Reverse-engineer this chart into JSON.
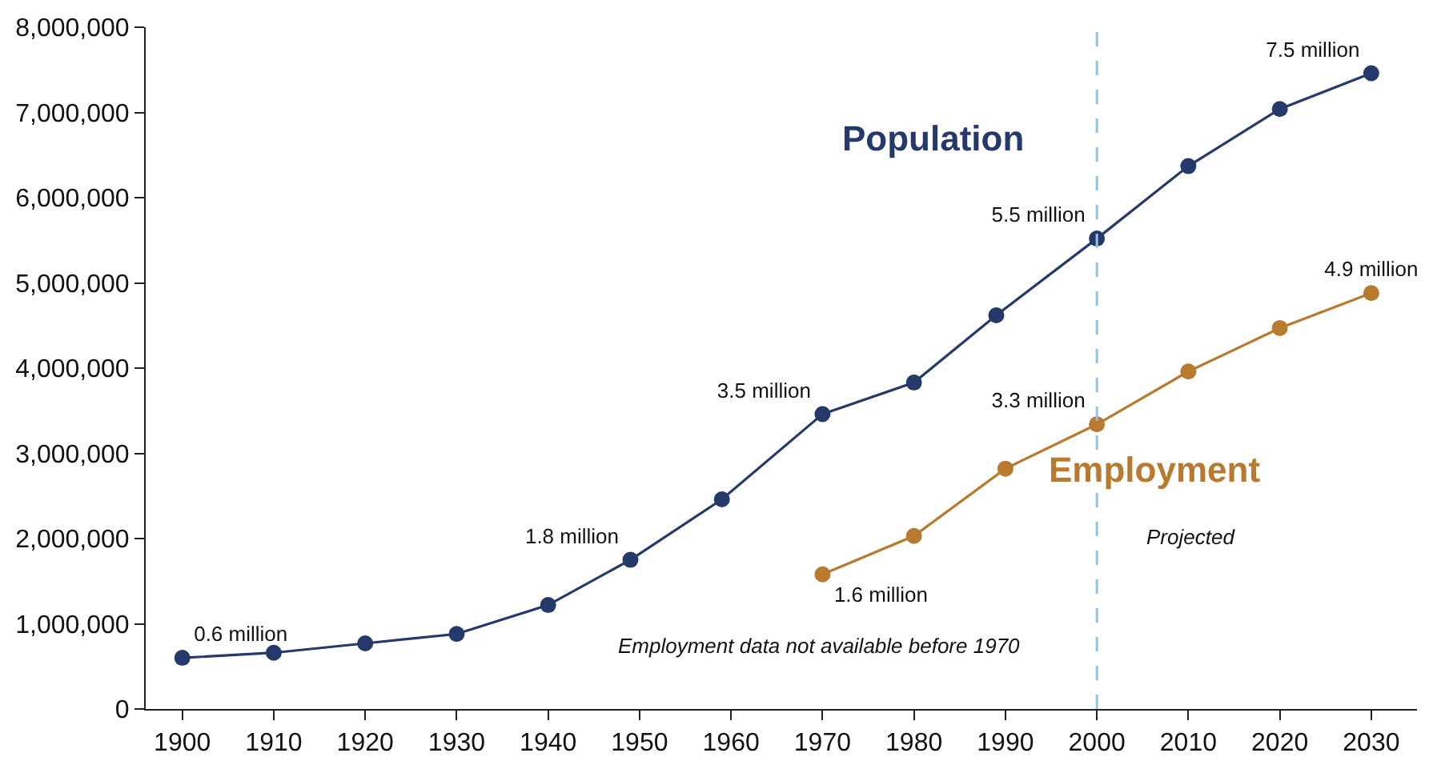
{
  "chart_data": {
    "type": "line",
    "series": [
      {
        "name": "Population",
        "color": "#253a6b",
        "x": [
          1900,
          1910,
          1920,
          1930,
          1940,
          1949,
          1959,
          1970,
          1980,
          1989,
          2000,
          2010,
          2020,
          2030
        ],
        "values": [
          600000,
          660000,
          770000,
          880000,
          1220000,
          1750000,
          2460000,
          3460000,
          3830000,
          4620000,
          5520000,
          6370000,
          7040000,
          7460000
        ],
        "value_labels": [
          "0.6 million",
          null,
          null,
          null,
          null,
          "1.8 million",
          null,
          "3.5 million",
          null,
          null,
          "5.5 million",
          null,
          null,
          "7.5 million"
        ]
      },
      {
        "name": "Employment",
        "color": "#b87a2f",
        "x": [
          1970,
          1980,
          1990,
          2000,
          2010,
          2020,
          2030
        ],
        "values": [
          1580000,
          2030000,
          2820000,
          3340000,
          3960000,
          4470000,
          4880000
        ],
        "value_labels": [
          "1.6 million",
          null,
          null,
          "3.3 million",
          null,
          null,
          "4.9 million"
        ]
      }
    ],
    "xlim": [
      1896,
      2035
    ],
    "xticks": [
      1900,
      1910,
      1920,
      1930,
      1940,
      1950,
      1960,
      1970,
      1980,
      1990,
      2000,
      2010,
      2020,
      2030
    ],
    "ylim": [
      0,
      8000000
    ],
    "yticks": [
      {
        "value": 0,
        "label": "0"
      },
      {
        "value": 1000000,
        "label": "1,000,000"
      },
      {
        "value": 2000000,
        "label": "2,000,000"
      },
      {
        "value": 3000000,
        "label": "3,000,000"
      },
      {
        "value": 4000000,
        "label": "4,000,000"
      },
      {
        "value": 5000000,
        "label": "5,000,000"
      },
      {
        "value": 6000000,
        "label": "6,000,000"
      },
      {
        "value": 7000000,
        "label": "7,000,000"
      },
      {
        "value": 8000000,
        "label": "8,000,000"
      }
    ],
    "ref_lines": [
      {
        "axis": "x",
        "value": 2000,
        "color": "#8ec5e0",
        "line_style": "dashed"
      }
    ],
    "annotations": [
      "Employment data not available before 1970",
      "Projected"
    ],
    "marker": "circle",
    "line_style": "solid",
    "legend": false
  }
}
